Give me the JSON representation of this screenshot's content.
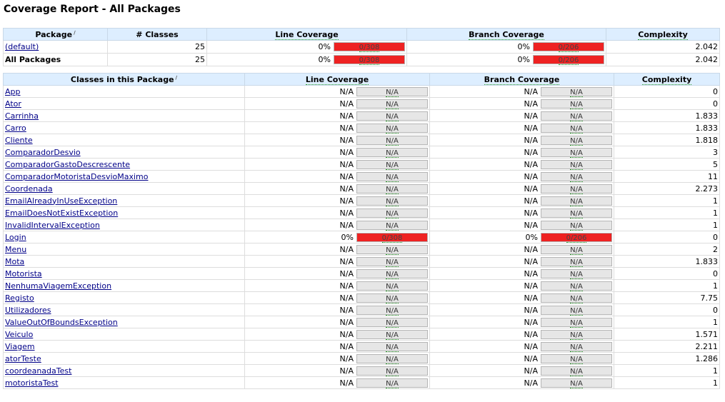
{
  "page": {
    "title": "Coverage Report - All Packages"
  },
  "colors": {
    "header_bg": "#ddeeff",
    "bar_na": "#e6e6e6",
    "bar_zero": "#ee2222",
    "link": "#000088"
  },
  "packages": {
    "headers": {
      "package": "Package",
      "classes": "# Classes",
      "line": "Line Coverage",
      "branch": "Branch Coverage",
      "complexity": "Complexity"
    },
    "sort_mark": "∕",
    "rows": [
      {
        "name": "(default)",
        "link": true,
        "classes": "25",
        "line_pct": "0%",
        "line_bar": "0/308",
        "branch_pct": "0%",
        "branch_bar": "0/206",
        "complexity": "2.042"
      },
      {
        "name": "All Packages",
        "link": false,
        "classes": "25",
        "line_pct": "0%",
        "line_bar": "0/308",
        "branch_pct": "0%",
        "branch_bar": "0/206",
        "complexity": "2.042"
      }
    ]
  },
  "classes": {
    "headers": {
      "name": "Classes in this Package",
      "line": "Line Coverage",
      "branch": "Branch Coverage",
      "complexity": "Complexity"
    },
    "rows": [
      {
        "name": "App",
        "line_pct": "N/A",
        "line_bar": "N/A",
        "branch_pct": "N/A",
        "branch_bar": "N/A",
        "complexity": "0"
      },
      {
        "name": "Ator",
        "line_pct": "N/A",
        "line_bar": "N/A",
        "branch_pct": "N/A",
        "branch_bar": "N/A",
        "complexity": "0"
      },
      {
        "name": "Carrinha",
        "line_pct": "N/A",
        "line_bar": "N/A",
        "branch_pct": "N/A",
        "branch_bar": "N/A",
        "complexity": "1.833"
      },
      {
        "name": "Carro",
        "line_pct": "N/A",
        "line_bar": "N/A",
        "branch_pct": "N/A",
        "branch_bar": "N/A",
        "complexity": "1.833"
      },
      {
        "name": "Cliente",
        "line_pct": "N/A",
        "line_bar": "N/A",
        "branch_pct": "N/A",
        "branch_bar": "N/A",
        "complexity": "1.818"
      },
      {
        "name": "ComparadorDesvio",
        "line_pct": "N/A",
        "line_bar": "N/A",
        "branch_pct": "N/A",
        "branch_bar": "N/A",
        "complexity": "3"
      },
      {
        "name": "ComparadorGastoDescrescente",
        "line_pct": "N/A",
        "line_bar": "N/A",
        "branch_pct": "N/A",
        "branch_bar": "N/A",
        "complexity": "5"
      },
      {
        "name": "ComparadorMotoristaDesvioMaximo",
        "line_pct": "N/A",
        "line_bar": "N/A",
        "branch_pct": "N/A",
        "branch_bar": "N/A",
        "complexity": "11"
      },
      {
        "name": "Coordenada",
        "line_pct": "N/A",
        "line_bar": "N/A",
        "branch_pct": "N/A",
        "branch_bar": "N/A",
        "complexity": "2.273"
      },
      {
        "name": "EmailAlreadyInUseException",
        "line_pct": "N/A",
        "line_bar": "N/A",
        "branch_pct": "N/A",
        "branch_bar": "N/A",
        "complexity": "1"
      },
      {
        "name": "EmailDoesNotExistException",
        "line_pct": "N/A",
        "line_bar": "N/A",
        "branch_pct": "N/A",
        "branch_bar": "N/A",
        "complexity": "1"
      },
      {
        "name": "InvalidIntervalException",
        "line_pct": "N/A",
        "line_bar": "N/A",
        "branch_pct": "N/A",
        "branch_bar": "N/A",
        "complexity": "1"
      },
      {
        "name": "Login",
        "line_pct": "0%",
        "line_bar": "0/308",
        "branch_pct": "0%",
        "branch_bar": "0/206",
        "complexity": "0"
      },
      {
        "name": "Menu",
        "line_pct": "N/A",
        "line_bar": "N/A",
        "branch_pct": "N/A",
        "branch_bar": "N/A",
        "complexity": "2"
      },
      {
        "name": "Mota",
        "line_pct": "N/A",
        "line_bar": "N/A",
        "branch_pct": "N/A",
        "branch_bar": "N/A",
        "complexity": "1.833"
      },
      {
        "name": "Motorista",
        "line_pct": "N/A",
        "line_bar": "N/A",
        "branch_pct": "N/A",
        "branch_bar": "N/A",
        "complexity": "0"
      },
      {
        "name": "NenhumaViagemException",
        "line_pct": "N/A",
        "line_bar": "N/A",
        "branch_pct": "N/A",
        "branch_bar": "N/A",
        "complexity": "1"
      },
      {
        "name": "Registo",
        "line_pct": "N/A",
        "line_bar": "N/A",
        "branch_pct": "N/A",
        "branch_bar": "N/A",
        "complexity": "7.75"
      },
      {
        "name": "Utilizadores",
        "line_pct": "N/A",
        "line_bar": "N/A",
        "branch_pct": "N/A",
        "branch_bar": "N/A",
        "complexity": "0"
      },
      {
        "name": "ValueOutOfBoundsException",
        "line_pct": "N/A",
        "line_bar": "N/A",
        "branch_pct": "N/A",
        "branch_bar": "N/A",
        "complexity": "1"
      },
      {
        "name": "Veiculo",
        "line_pct": "N/A",
        "line_bar": "N/A",
        "branch_pct": "N/A",
        "branch_bar": "N/A",
        "complexity": "1.571"
      },
      {
        "name": "Viagem",
        "line_pct": "N/A",
        "line_bar": "N/A",
        "branch_pct": "N/A",
        "branch_bar": "N/A",
        "complexity": "2.211"
      },
      {
        "name": "atorTeste",
        "line_pct": "N/A",
        "line_bar": "N/A",
        "branch_pct": "N/A",
        "branch_bar": "N/A",
        "complexity": "1.286"
      },
      {
        "name": "coordeanadaTest",
        "line_pct": "N/A",
        "line_bar": "N/A",
        "branch_pct": "N/A",
        "branch_bar": "N/A",
        "complexity": "1"
      },
      {
        "name": "motoristaTest",
        "line_pct": "N/A",
        "line_bar": "N/A",
        "branch_pct": "N/A",
        "branch_bar": "N/A",
        "complexity": "1"
      }
    ]
  }
}
